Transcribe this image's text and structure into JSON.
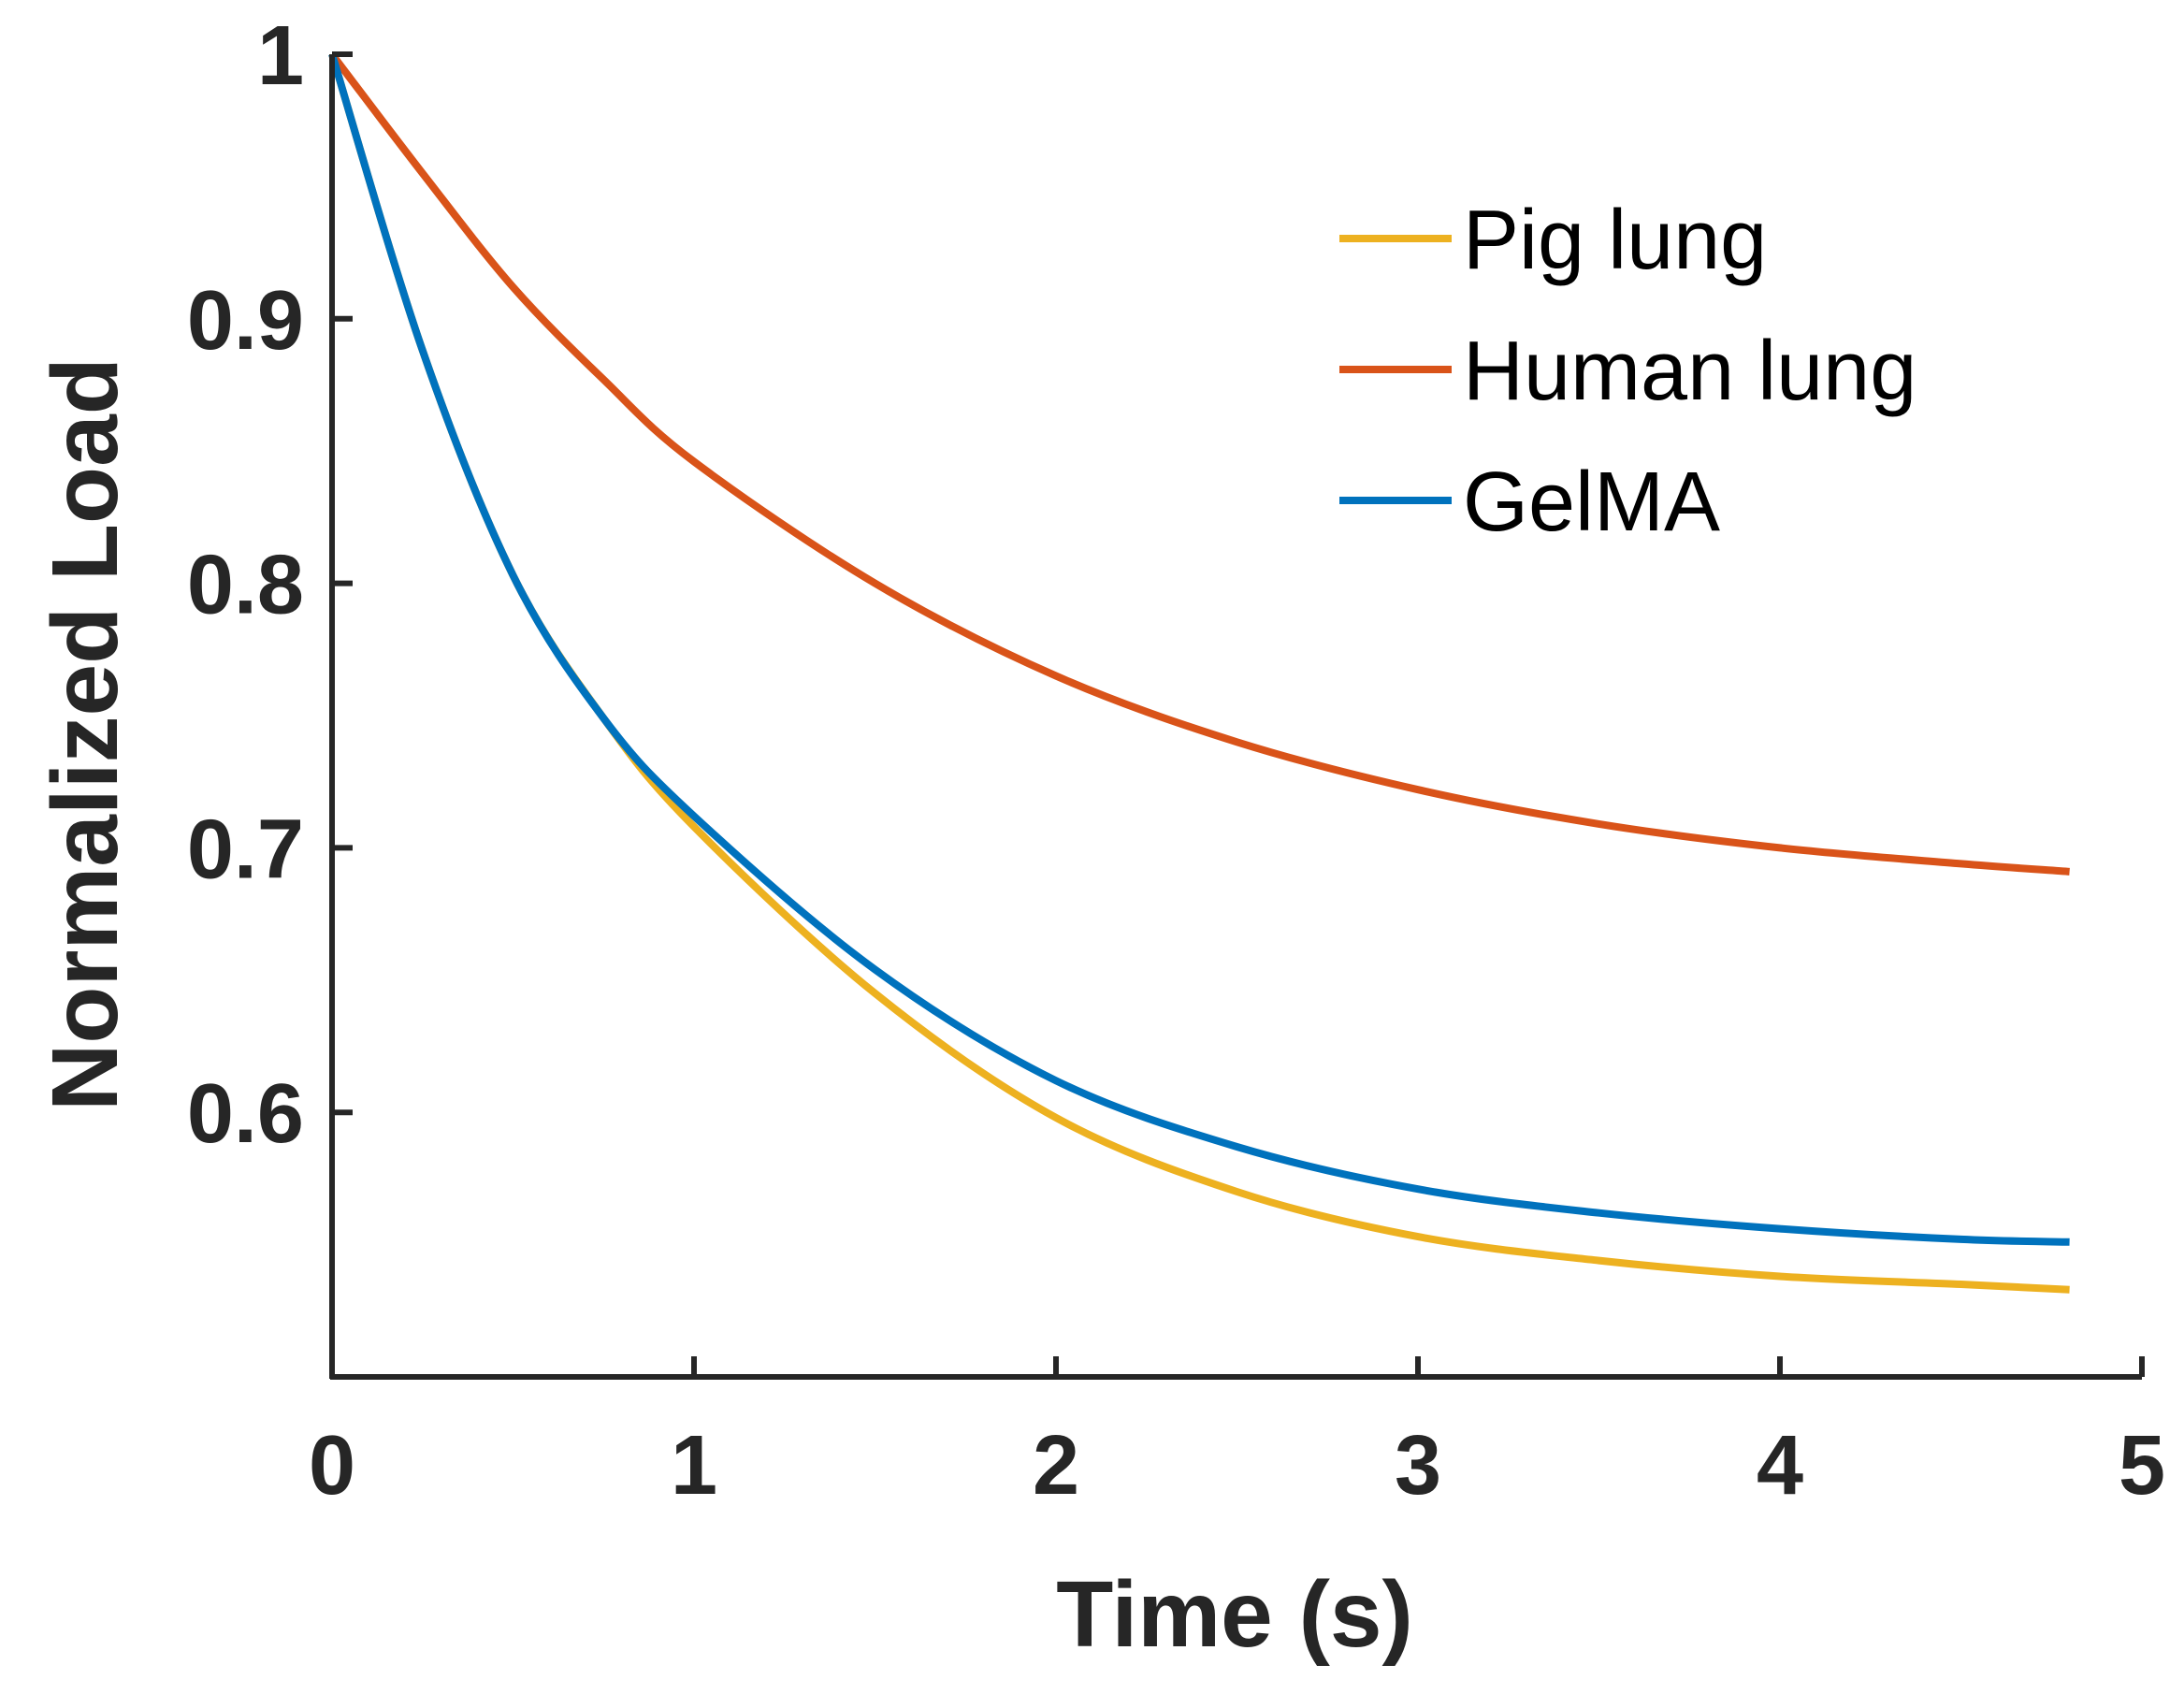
{
  "chart_data": {
    "type": "line",
    "title": "",
    "xlabel": "Time (s)",
    "ylabel": "Normalized Load",
    "xlim": [
      0,
      5
    ],
    "ylim": [
      0.5,
      1
    ],
    "xticks": [
      0,
      1,
      2,
      3,
      4,
      5
    ],
    "xtick_labels": [
      "0",
      "1",
      "2",
      "3",
      "4",
      "5"
    ],
    "yticks": [
      0.6,
      0.7,
      0.8,
      0.9,
      1
    ],
    "ytick_labels": [
      "0.6",
      "0.7",
      "0.8",
      "0.9",
      "1"
    ],
    "grid": false,
    "legend_position": "top-right",
    "x": [
      0,
      0.25,
      0.5,
      0.75,
      1,
      1.5,
      2,
      2.5,
      3,
      3.5,
      4,
      4.5,
      4.8
    ],
    "series": [
      {
        "name": "Pig lung",
        "color": "#EDB120",
        "values": [
          1.0,
          0.888,
          0.803,
          0.749,
          0.708,
          0.645,
          0.598,
          0.57,
          0.553,
          0.544,
          0.538,
          0.535,
          0.533
        ]
      },
      {
        "name": "Human lung",
        "color": "#D95319",
        "values": [
          1.0,
          0.955,
          0.912,
          0.877,
          0.846,
          0.8,
          0.765,
          0.74,
          0.722,
          0.709,
          0.7,
          0.694,
          0.691
        ]
      },
      {
        "name": "GelMA",
        "color": "#0072BD",
        "values": [
          1.0,
          0.888,
          0.803,
          0.749,
          0.712,
          0.654,
          0.612,
          0.587,
          0.571,
          0.562,
          0.556,
          0.552,
          0.551
        ]
      }
    ]
  }
}
